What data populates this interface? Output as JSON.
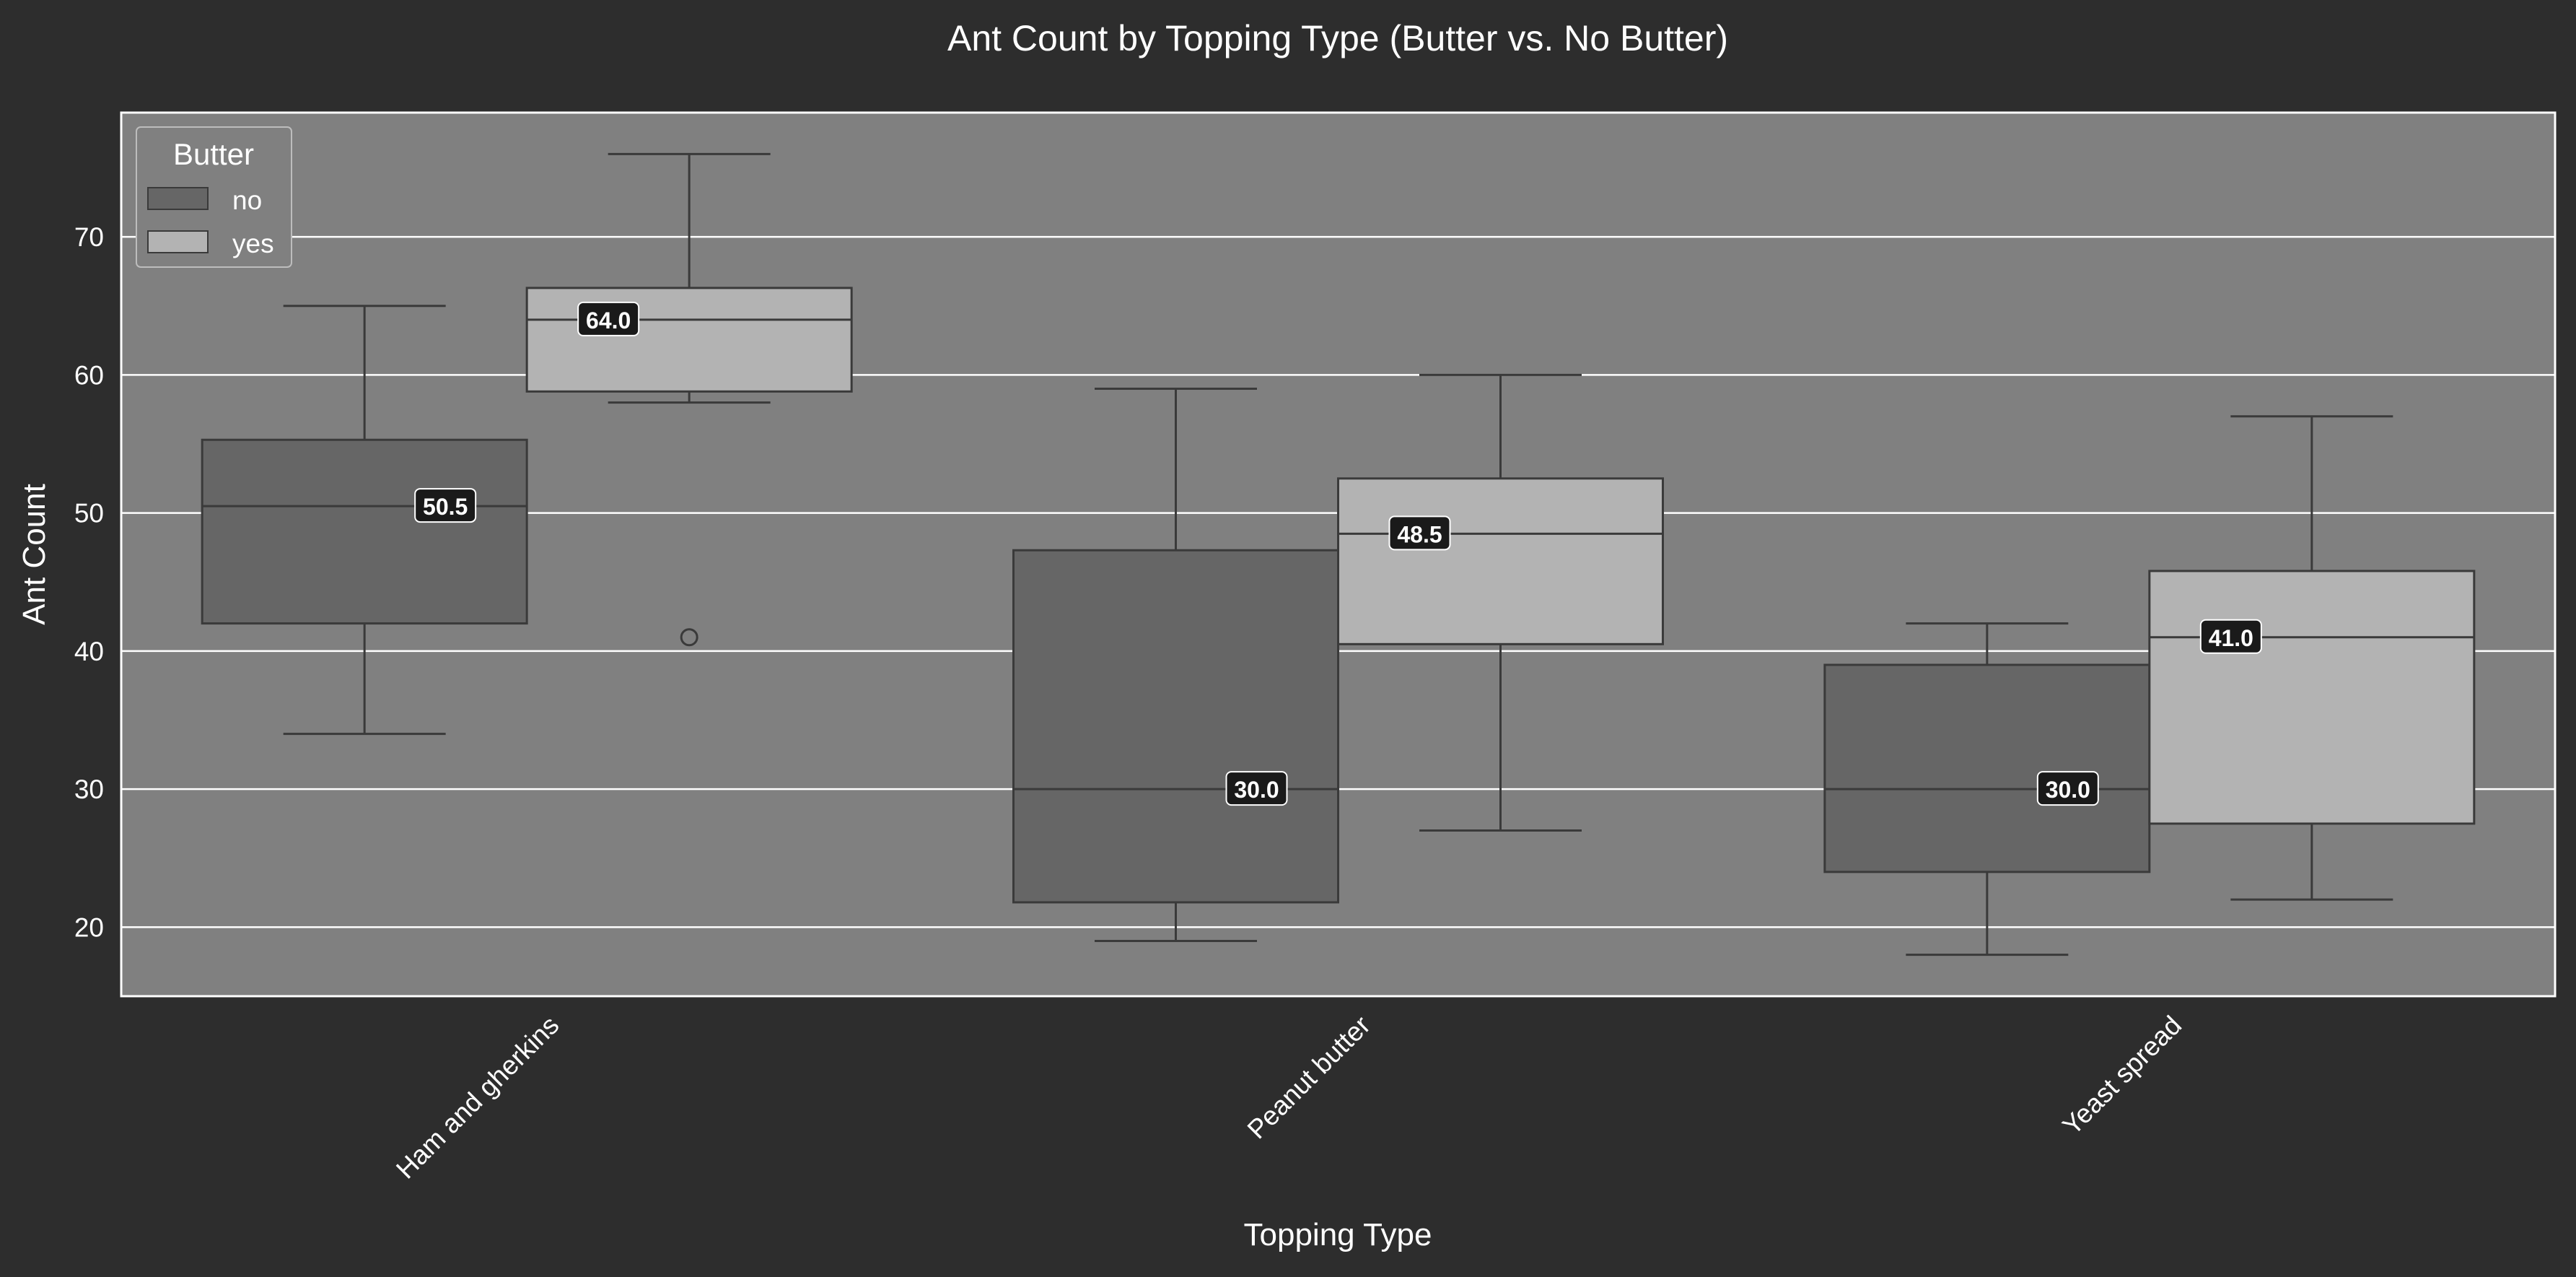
{
  "chart_data": {
    "type": "box",
    "title": "Ant Count by Topping Type (Butter vs. No Butter)",
    "xlabel": "Topping Type",
    "ylabel": "Ant Count",
    "ylim": [
      15,
      79
    ],
    "yticks": [
      20,
      30,
      40,
      50,
      60,
      70
    ],
    "grid": true,
    "categories": [
      "Ham and gherkins",
      "Peanut butter",
      "Yeast spread"
    ],
    "legend": {
      "title": "Butter",
      "position": "top-left"
    },
    "series": [
      {
        "name": "no",
        "color": "#666666",
        "boxes": [
          {
            "whisker_low": 34,
            "q1": 42,
            "median": 50.5,
            "q3": 55.3,
            "whisker_high": 65,
            "outliers": [],
            "median_label": "50.5"
          },
          {
            "whisker_low": 19,
            "q1": 21.8,
            "median": 30,
            "q3": 47.3,
            "whisker_high": 59,
            "outliers": [],
            "median_label": "30.0"
          },
          {
            "whisker_low": 18,
            "q1": 24,
            "median": 30,
            "q3": 39,
            "whisker_high": 42,
            "outliers": [],
            "median_label": "30.0"
          }
        ]
      },
      {
        "name": "yes",
        "color": "#b3b3b3",
        "boxes": [
          {
            "whisker_low": 58,
            "q1": 58.8,
            "median": 64,
            "q3": 66.3,
            "whisker_high": 76,
            "outliers": [
              41
            ],
            "median_label": "64.0"
          },
          {
            "whisker_low": 27,
            "q1": 40.5,
            "median": 48.5,
            "q3": 52.5,
            "whisker_high": 60,
            "outliers": [],
            "median_label": "48.5"
          },
          {
            "whisker_low": 22,
            "q1": 27.5,
            "median": 41,
            "q3": 45.8,
            "whisker_high": 57,
            "outliers": [],
            "median_label": "41.0"
          }
        ]
      }
    ]
  },
  "colors": {
    "figure_background": "#2d2d2d",
    "plot_background": "#808080",
    "grid": "#ffffff",
    "text": "#ffffff",
    "box_edge": "#3a3a3a",
    "label_background": "#1a1a1a"
  }
}
